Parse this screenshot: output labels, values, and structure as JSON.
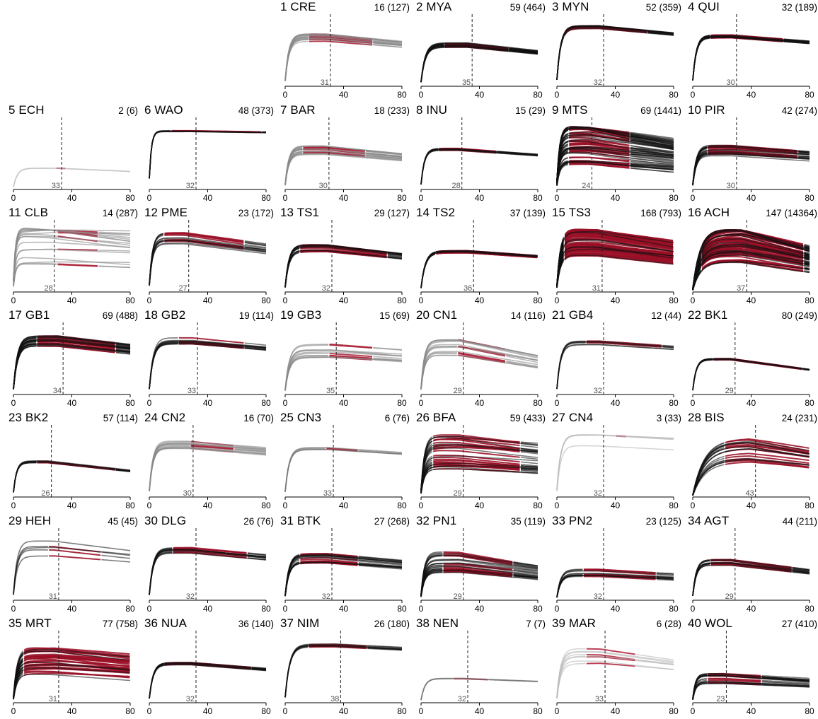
{
  "colors": {
    "highlight": "#b0102b",
    "dark": "#111111",
    "mid": "#777777",
    "light": "#bbbbbb",
    "vline": "#222222",
    "vlabel": "#555555"
  },
  "chart_data": [
    {
      "type": "line",
      "id": "1",
      "code": "CRE",
      "title": "1 CRE",
      "count": "16 (127)",
      "xlim": [
        0,
        80
      ],
      "xticks": [
        0,
        40,
        80
      ],
      "vline": 31,
      "vlabel": "31",
      "peak": 0.82,
      "style": "gray",
      "n_red": 8,
      "n_gray": 8,
      "red_start": 16,
      "red_end": 60,
      "tail": 0.15,
      "spread": 0.1
    },
    {
      "type": "line",
      "id": "2",
      "code": "MYA",
      "title": "2 MYA",
      "count": "59 (464)",
      "xlim": [
        0,
        80
      ],
      "xticks": [
        0,
        40,
        80
      ],
      "vline": 35,
      "vlabel": "35",
      "peak": 0.68,
      "style": "dark",
      "n_red": 12,
      "n_gray": 10,
      "red_start": 16,
      "red_end": 60,
      "tail": 0.18,
      "spread": 0.06
    },
    {
      "type": "line",
      "id": "3",
      "code": "MYN",
      "title": "3 MYN",
      "count": "52 (359)",
      "xlim": [
        0,
        80
      ],
      "xticks": [
        0,
        40,
        80
      ],
      "vline": 32,
      "vlabel": "32",
      "peak": 0.97,
      "style": "dark",
      "n_red": 12,
      "n_gray": 8,
      "red_start": 5,
      "red_end": 62,
      "tail": 0.12,
      "spread": 0.03
    },
    {
      "type": "line",
      "id": "4",
      "code": "QUI",
      "title": "4 QUI",
      "count": "32 (189)",
      "xlim": [
        0,
        80
      ],
      "xticks": [
        0,
        40,
        80
      ],
      "vline": 30,
      "vlabel": "30",
      "peak": 0.82,
      "style": "dark",
      "n_red": 10,
      "n_gray": 8,
      "red_start": 12,
      "red_end": 62,
      "tail": 0.12,
      "spread": 0.03
    },
    {
      "type": "line",
      "id": "5",
      "code": "ECH",
      "title": "5 ECH",
      "count": "2 (6)",
      "xlim": [
        0,
        80
      ],
      "xticks": [
        0,
        40,
        80
      ],
      "vline": 33,
      "vlabel": "33",
      "peak": 0.35,
      "style": "light",
      "n_red": 1,
      "n_gray": 1,
      "red_start": 29,
      "red_end": 36,
      "tail": 0.15,
      "spread": 0.01
    },
    {
      "type": "line",
      "id": "6",
      "code": "WAO",
      "title": "6 WAO",
      "count": "48 (373)",
      "xlim": [
        0,
        80
      ],
      "xticks": [
        0,
        40,
        80
      ],
      "vline": 32,
      "vlabel": "32",
      "peak": 0.96,
      "style": "dark",
      "n_red": 6,
      "n_gray": 4,
      "red_start": 15,
      "red_end": 77,
      "tail": 0.02,
      "spread": 0.01,
      "rise": 2.5
    },
    {
      "type": "line",
      "id": "7",
      "code": "BAR",
      "title": "7 BAR",
      "count": "18 (233)",
      "xlim": [
        0,
        80
      ],
      "xticks": [
        0,
        40,
        80
      ],
      "vline": 30,
      "vlabel": "30",
      "peak": 0.64,
      "style": "gray",
      "n_red": 10,
      "n_gray": 10,
      "red_start": 12,
      "red_end": 55,
      "tail": 0.18,
      "spread": 0.12
    },
    {
      "type": "line",
      "id": "8",
      "code": "INU",
      "title": "8 INU",
      "count": "15 (29)",
      "xlim": [
        0,
        80
      ],
      "xticks": [
        0,
        40,
        80
      ],
      "vline": 28,
      "vlabel": "28",
      "peak": 0.66,
      "style": "dark",
      "n_red": 6,
      "n_gray": 5,
      "red_start": 12,
      "red_end": 52,
      "tail": 0.14,
      "spread": 0.03
    },
    {
      "type": "line",
      "id": "9",
      "code": "MTS",
      "title": "9 MTS",
      "count": "69 (1441)",
      "xlim": [
        0,
        80
      ],
      "xticks": [
        0,
        40,
        80
      ],
      "vline": 24,
      "vlabel": "24",
      "peak": 0.78,
      "style": "dark",
      "n_red": 45,
      "n_gray": 25,
      "red_start": 8,
      "red_end": 50,
      "tail": 0.25,
      "spread": 0.5
    },
    {
      "type": "line",
      "id": "10",
      "code": "PIR",
      "title": "10 PIR",
      "count": "42 (274)",
      "xlim": [
        0,
        80
      ],
      "xticks": [
        0,
        40,
        80
      ],
      "vline": 30,
      "vlabel": "30",
      "peak": 0.64,
      "style": "dark",
      "n_red": 14,
      "n_gray": 10,
      "red_start": 10,
      "red_end": 72,
      "tail": 0.14,
      "spread": 0.14
    },
    {
      "type": "line",
      "id": "11",
      "code": "CLB",
      "title": "11 CLB",
      "count": "14 (287)",
      "xlim": [
        0,
        80
      ],
      "xticks": [
        0,
        40,
        80
      ],
      "vline": 28,
      "vlabel": "28",
      "peak": 0.9,
      "style": "gray",
      "n_red": 8,
      "n_gray": 10,
      "red_start": 30,
      "red_end": 58,
      "tail": 0.1,
      "spread": 0.55,
      "rise": 2.2
    },
    {
      "type": "line",
      "id": "12",
      "code": "PME",
      "title": "12 PME",
      "count": "23 (172)",
      "xlim": [
        0,
        80
      ],
      "xticks": [
        0,
        40,
        80
      ],
      "vline": 27,
      "vlabel": "27",
      "peak": 0.88,
      "style": "dark",
      "n_red": 8,
      "n_gray": 6,
      "red_start": 10,
      "red_end": 65,
      "tail": 0.2,
      "spread": 0.12
    },
    {
      "type": "line",
      "id": "13",
      "code": "TS1",
      "title": "13 TS1",
      "count": "29 (127)",
      "xlim": [
        0,
        80
      ],
      "xticks": [
        0,
        40,
        80
      ],
      "vline": 32,
      "vlabel": "32",
      "peak": 0.72,
      "style": "dark",
      "n_red": 12,
      "n_gray": 8,
      "red_start": 10,
      "red_end": 70,
      "tail": 0.18,
      "spread": 0.08
    },
    {
      "type": "line",
      "id": "14",
      "code": "TS2",
      "title": "14 TS2",
      "count": "37 (139)",
      "xlim": [
        0,
        80
      ],
      "xticks": [
        0,
        40,
        80
      ],
      "vline": 36,
      "vlabel": "36",
      "peak": 0.66,
      "style": "dark",
      "n_red": 12,
      "n_gray": 6,
      "red_start": 10,
      "red_end": 80,
      "tail": 0.12,
      "spread": 0.03
    },
    {
      "type": "line",
      "id": "15",
      "code": "TS3",
      "title": "15 TS3",
      "count": "168 (793)",
      "xlim": [
        0,
        80
      ],
      "xticks": [
        0,
        40,
        80
      ],
      "vline": 31,
      "vlabel": "31",
      "peak": 0.82,
      "style": "dark",
      "n_red": 60,
      "n_gray": 8,
      "red_start": 5,
      "red_end": 80,
      "tail": 0.2,
      "spread": 0.28
    },
    {
      "type": "line",
      "id": "16",
      "code": "ACH",
      "title": "16 ACH",
      "count": "147 (14364)",
      "xlim": [
        0,
        80
      ],
      "xticks": [
        0,
        40,
        80
      ],
      "vline": 37,
      "vlabel": "37",
      "peak": 0.8,
      "style": "mixed",
      "n_red": 60,
      "n_gray": 20,
      "red_start": 6,
      "red_end": 76,
      "tail": 0.3,
      "spread": 0.4,
      "rise": 0.8
    },
    {
      "type": "line",
      "id": "17",
      "code": "GB1",
      "title": "17 GB1",
      "count": "69 (488)",
      "xlim": [
        0,
        80
      ],
      "xticks": [
        0,
        40,
        80
      ],
      "vline": 34,
      "vlabel": "34",
      "peak": 0.88,
      "style": "dark",
      "n_red": 20,
      "n_gray": 12,
      "red_start": 16,
      "red_end": 70,
      "tail": 0.15,
      "spread": 0.1
    },
    {
      "type": "line",
      "id": "18",
      "code": "GB2",
      "title": "18 GB2",
      "count": "19 (114)",
      "xlim": [
        0,
        80
      ],
      "xticks": [
        0,
        40,
        80
      ],
      "vline": 33,
      "vlabel": "33",
      "peak": 0.88,
      "style": "dark",
      "n_red": 6,
      "n_gray": 6,
      "red_start": 20,
      "red_end": 65,
      "tail": 0.12,
      "spread": 0.06
    },
    {
      "type": "line",
      "id": "19",
      "code": "GB3",
      "title": "19 GB3",
      "count": "15 (69)",
      "xlim": [
        0,
        80
      ],
      "xticks": [
        0,
        40,
        80
      ],
      "vline": 35,
      "vlabel": "35",
      "peak": 0.7,
      "style": "gray",
      "n_red": 6,
      "n_gray": 6,
      "red_start": 30,
      "red_end": 60,
      "tail": 0.12,
      "spread": 0.18
    },
    {
      "type": "line",
      "id": "20",
      "code": "CN1",
      "title": "20 CN1",
      "count": "14 (116)",
      "xlim": [
        0,
        80
      ],
      "xticks": [
        0,
        40,
        80
      ],
      "vline": 29,
      "vlabel": "29",
      "peak": 0.8,
      "style": "gray",
      "n_red": 6,
      "n_gray": 8,
      "red_start": 25,
      "red_end": 58,
      "tail": 0.3,
      "spread": 0.2
    },
    {
      "type": "line",
      "id": "21",
      "code": "GB4",
      "title": "21 GB4",
      "count": "12 (44)",
      "xlim": [
        0,
        80
      ],
      "xticks": [
        0,
        40,
        80
      ],
      "vline": 32,
      "vlabel": "32",
      "peak": 0.85,
      "style": "dark",
      "n_red": 3,
      "n_gray": 4,
      "red_start": 20,
      "red_end": 72,
      "tail": 0.1,
      "spread": 0.04
    },
    {
      "type": "line",
      "id": "22",
      "code": "BK1",
      "title": "22 BK1",
      "count": "80 (249)",
      "xlim": [
        0,
        80
      ],
      "xticks": [
        0,
        40,
        80
      ],
      "vline": 29,
      "vlabel": "29",
      "peak": 0.58,
      "style": "dark",
      "n_red": 8,
      "n_gray": 4,
      "red_start": 14,
      "red_end": 75,
      "tail": 0.3,
      "spread": 0.02
    },
    {
      "type": "line",
      "id": "23",
      "code": "BK2",
      "title": "23 BK2",
      "count": "57 (114)",
      "xlim": [
        0,
        80
      ],
      "xticks": [
        0,
        40,
        80
      ],
      "vline": 26,
      "vlabel": "26",
      "peak": 0.58,
      "style": "dark",
      "n_red": 6,
      "n_gray": 4,
      "red_start": 16,
      "red_end": 70,
      "tail": 0.26,
      "spread": 0.03
    },
    {
      "type": "line",
      "id": "24",
      "code": "CN2",
      "title": "24 CN2",
      "count": "16 (70)",
      "xlim": [
        0,
        80
      ],
      "xticks": [
        0,
        40,
        80
      ],
      "vline": 30,
      "vlabel": "30",
      "peak": 0.88,
      "style": "gray",
      "n_red": 5,
      "n_gray": 8,
      "red_start": 28,
      "red_end": 58,
      "tail": 0.12,
      "spread": 0.1
    },
    {
      "type": "line",
      "id": "25",
      "code": "CN3",
      "title": "25 CN3",
      "count": "6 (76)",
      "xlim": [
        0,
        80
      ],
      "xticks": [
        0,
        40,
        80
      ],
      "vline": 33,
      "vlabel": "33",
      "peak": 0.8,
      "style": "mid",
      "n_red": 2,
      "n_gray": 3,
      "red_start": 28,
      "red_end": 50,
      "tail": 0.1,
      "spread": 0.03
    },
    {
      "type": "line",
      "id": "26",
      "code": "BFA",
      "title": "26 BFA",
      "count": "59 (433)",
      "xlim": [
        0,
        80
      ],
      "xticks": [
        0,
        40,
        80
      ],
      "vline": 29,
      "vlabel": "29",
      "peak": 0.74,
      "style": "dark",
      "n_red": 24,
      "n_gray": 10,
      "red_start": 8,
      "red_end": 68,
      "tail": 0.15,
      "spread": 0.4
    },
    {
      "type": "line",
      "id": "27",
      "code": "CN4",
      "title": "27 CN4",
      "count": "3 (33)",
      "xlim": [
        0,
        80
      ],
      "xticks": [
        0,
        40,
        80
      ],
      "vline": 32,
      "vlabel": "32",
      "peak": 0.95,
      "style": "light",
      "n_red": 2,
      "n_gray": 3,
      "red_start": 40,
      "red_end": 48,
      "tail": 0.06,
      "spread": 0.12
    },
    {
      "type": "line",
      "id": "28",
      "code": "BIS",
      "title": "28 BIS",
      "count": "24 (231)",
      "xlim": [
        0,
        80
      ],
      "xticks": [
        0,
        40,
        80
      ],
      "vline": 43,
      "vlabel": "43",
      "peak": 0.74,
      "style": "dark",
      "n_red": 14,
      "n_gray": 8,
      "red_start": 22,
      "red_end": 80,
      "tail": 0.18,
      "spread": 0.3,
      "rise": 0.6
    },
    {
      "type": "line",
      "id": "29",
      "code": "HEH",
      "title": "29 HEH",
      "count": "45 (45)",
      "xlim": [
        0,
        80
      ],
      "xticks": [
        0,
        40,
        80
      ],
      "vline": 31,
      "vlabel": "31",
      "peak": 0.85,
      "style": "dark",
      "n_red": 3,
      "n_gray": 2,
      "red_start": 24,
      "red_end": 60,
      "tail": 0.15,
      "spread": 0.15
    },
    {
      "type": "line",
      "id": "30",
      "code": "DLG",
      "title": "30 DLG",
      "count": "26 (76)",
      "xlim": [
        0,
        80
      ],
      "xticks": [
        0,
        40,
        80
      ],
      "vline": 32,
      "vlabel": "32",
      "peak": 0.82,
      "style": "dark",
      "n_red": 8,
      "n_gray": 6,
      "red_start": 16,
      "red_end": 67,
      "tail": 0.14,
      "spread": 0.06
    },
    {
      "type": "line",
      "id": "31",
      "code": "BTK",
      "title": "31 BTK",
      "count": "27 (268)",
      "xlim": [
        0,
        80
      ],
      "xticks": [
        0,
        40,
        80
      ],
      "vline": 32,
      "vlabel": "32",
      "peak": 0.68,
      "style": "dark",
      "n_red": 10,
      "n_gray": 10,
      "red_start": 10,
      "red_end": 50,
      "tail": 0.15,
      "spread": 0.14
    },
    {
      "type": "line",
      "id": "32",
      "code": "PN1",
      "title": "32 PN1",
      "count": "35 (119)",
      "xlim": [
        0,
        80
      ],
      "xticks": [
        0,
        40,
        80
      ],
      "vline": 29,
      "vlabel": "29",
      "peak": 0.62,
      "style": "dark",
      "n_red": 16,
      "n_gray": 12,
      "red_start": 15,
      "red_end": 63,
      "tail": 0.25,
      "spread": 0.28
    },
    {
      "type": "line",
      "id": "33",
      "code": "PN2",
      "title": "33 PN2",
      "count": "23 (125)",
      "xlim": [
        0,
        80
      ],
      "xticks": [
        0,
        40,
        80
      ],
      "vline": 32,
      "vlabel": "32",
      "peak": 0.45,
      "style": "dark",
      "n_red": 8,
      "n_gray": 6,
      "red_start": 18,
      "red_end": 68,
      "tail": 0.14,
      "spread": 0.14
    },
    {
      "type": "line",
      "id": "34",
      "code": "AGT",
      "title": "34 AGT",
      "count": "44 (211)",
      "xlim": [
        0,
        80
      ],
      "xticks": [
        0,
        40,
        80
      ],
      "vline": 29,
      "vlabel": "29",
      "peak": 0.62,
      "style": "dark",
      "n_red": 10,
      "n_gray": 6,
      "red_start": 12,
      "red_end": 68,
      "tail": 0.25,
      "spread": 0.08
    },
    {
      "type": "line",
      "id": "35",
      "code": "MRT",
      "title": "35 MRT",
      "count": "77 (758)",
      "xlim": [
        0,
        80
      ],
      "xticks": [
        0,
        40,
        80
      ],
      "vline": 31,
      "vlabel": "31",
      "peak": 0.68,
      "style": "dark",
      "n_red": 30,
      "n_gray": 6,
      "red_start": 7,
      "red_end": 80,
      "tail": 0.15,
      "spread": 0.35
    },
    {
      "type": "line",
      "id": "36",
      "code": "NUA",
      "title": "36 NUA",
      "count": "36 (140)",
      "xlim": [
        0,
        80
      ],
      "xticks": [
        0,
        40,
        80
      ],
      "vline": 32,
      "vlabel": "32",
      "peak": 0.64,
      "style": "dark",
      "n_red": 8,
      "n_gray": 6,
      "red_start": 10,
      "red_end": 70,
      "tail": 0.15,
      "spread": 0.04
    },
    {
      "type": "line",
      "id": "37",
      "code": "NIM",
      "title": "37 NIM",
      "count": "26 (180)",
      "xlim": [
        0,
        80
      ],
      "xticks": [
        0,
        40,
        80
      ],
      "vline": 38,
      "vlabel": "38",
      "peak": 0.94,
      "style": "dark",
      "n_red": 5,
      "n_gray": 4,
      "red_start": 16,
      "red_end": 56,
      "tail": 0.06,
      "spread": 0.03
    },
    {
      "type": "line",
      "id": "38",
      "code": "NEN",
      "title": "38 NEN",
      "count": "7 (7)",
      "xlim": [
        0,
        80
      ],
      "xticks": [
        0,
        40,
        80
      ],
      "vline": 32,
      "vlabel": "32",
      "peak": 0.4,
      "style": "mid",
      "n_red": 2,
      "n_gray": 2,
      "red_start": 22,
      "red_end": 46,
      "tail": 0.12,
      "spread": 0.02
    },
    {
      "type": "line",
      "id": "39",
      "code": "MAR",
      "title": "39 MAR",
      "count": "6 (28)",
      "xlim": [
        0,
        80
      ],
      "xticks": [
        0,
        40,
        80
      ],
      "vline": 33,
      "vlabel": "33",
      "peak": 0.74,
      "style": "light",
      "n_red": 4,
      "n_gray": 4,
      "red_start": 20,
      "red_end": 54,
      "tail": 0.18,
      "spread": 0.2
    },
    {
      "type": "line",
      "id": "40",
      "code": "WOL",
      "title": "40 WOL",
      "count": "27 (410)",
      "xlim": [
        0,
        80
      ],
      "xticks": [
        0,
        40,
        80
      ],
      "vline": 23,
      "vlabel": "23",
      "peak": 0.4,
      "style": "dark",
      "n_red": 12,
      "n_gray": 10,
      "red_start": 10,
      "red_end": 47,
      "tail": 0.2,
      "spread": 0.22
    }
  ]
}
